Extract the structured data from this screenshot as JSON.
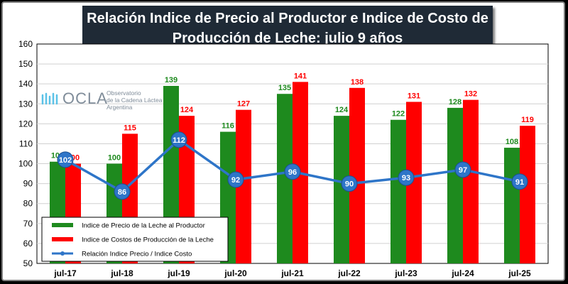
{
  "colors": {
    "producer_price": "#1e8a1e",
    "production_cost": "#ff0000",
    "ratio": "#2e75c8",
    "title_bg": "#1f2a36"
  },
  "logo": {
    "name": "OCLA",
    "line1": "Observatorio",
    "line2": "de la Cadena Láctea",
    "line3": "Argentina",
    "icon": "milk-wave-icon"
  },
  "chart_data": {
    "type": "bar",
    "title_line1": "Relación Indice de Precio al Productor e Indice de Costo de",
    "title_line2": "Producción de Leche:  julio 9 años",
    "categories": [
      "jul-17",
      "jul-18",
      "jul-19",
      "jul-20",
      "jul-21",
      "jul-22",
      "jul-23",
      "jul-24",
      "jul-25"
    ],
    "series": [
      {
        "name": "Indice de Precio de la Leche al Productor",
        "type": "bar",
        "values": [
          101,
          100,
          139,
          116,
          135,
          124,
          122,
          128,
          108
        ]
      },
      {
        "name": "Indice de Costos de Producción de la Leche",
        "type": "bar",
        "values": [
          100,
          115,
          124,
          127,
          141,
          138,
          131,
          132,
          119
        ]
      },
      {
        "name": "Relación Indice Precio / Indice Costo",
        "type": "line",
        "values": [
          102,
          86,
          112,
          92,
          96,
          90,
          93,
          97,
          91
        ]
      }
    ],
    "ylim": [
      50,
      160
    ],
    "yticks": [
      50,
      60,
      70,
      80,
      90,
      100,
      110,
      120,
      130,
      140,
      150,
      160
    ],
    "grid": true,
    "legend_position": "bottom-left"
  }
}
